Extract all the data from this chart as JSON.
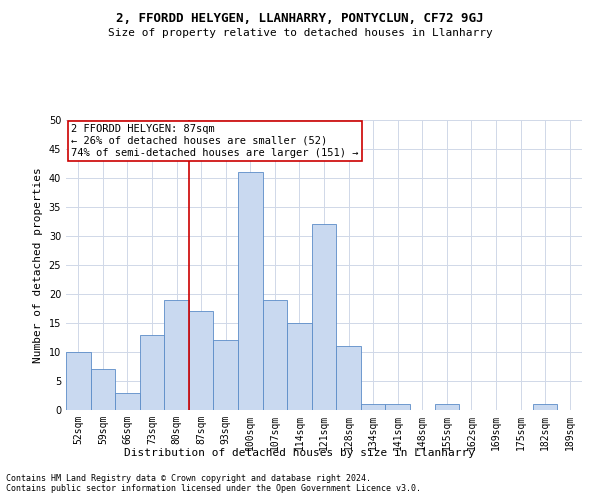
{
  "title": "2, FFORDD HELYGEN, LLANHARRY, PONTYCLUN, CF72 9GJ",
  "subtitle": "Size of property relative to detached houses in Llanharry",
  "xlabel": "Distribution of detached houses by size in Llanharry",
  "ylabel": "Number of detached properties",
  "categories": [
    "52sqm",
    "59sqm",
    "66sqm",
    "73sqm",
    "80sqm",
    "87sqm",
    "93sqm",
    "100sqm",
    "107sqm",
    "114sqm",
    "121sqm",
    "128sqm",
    "134sqm",
    "141sqm",
    "148sqm",
    "155sqm",
    "162sqm",
    "169sqm",
    "175sqm",
    "182sqm",
    "189sqm"
  ],
  "values": [
    10,
    7,
    3,
    13,
    19,
    17,
    12,
    41,
    19,
    15,
    32,
    11,
    1,
    1,
    0,
    1,
    0,
    0,
    0,
    1,
    0
  ],
  "bar_color": "#c9d9f0",
  "bar_edge_color": "#5b8cc8",
  "highlight_index": 5,
  "highlight_line_color": "#cc0000",
  "ylim": [
    0,
    50
  ],
  "yticks": [
    0,
    5,
    10,
    15,
    20,
    25,
    30,
    35,
    40,
    45,
    50
  ],
  "annotation_text": "2 FFORDD HELYGEN: 87sqm\n← 26% of detached houses are smaller (52)\n74% of semi-detached houses are larger (151) →",
  "annotation_box_color": "#ffffff",
  "annotation_box_edge": "#cc0000",
  "footnote1": "Contains HM Land Registry data © Crown copyright and database right 2024.",
  "footnote2": "Contains public sector information licensed under the Open Government Licence v3.0.",
  "bg_color": "#ffffff",
  "grid_color": "#d0d8e8",
  "title_fontsize": 9,
  "subtitle_fontsize": 8,
  "axis_label_fontsize": 8,
  "tick_fontsize": 7,
  "annotation_fontsize": 7.5,
  "footnote_fontsize": 6
}
